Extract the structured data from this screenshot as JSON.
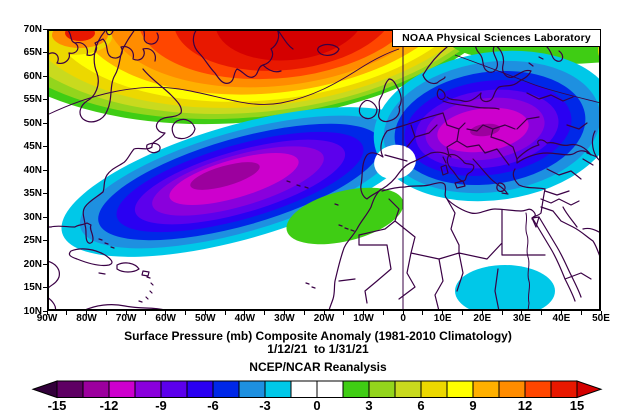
{
  "branding": {
    "label": "NOAA Physical Sciences Laboratory"
  },
  "captions": {
    "line1": "Surface Pressure (mb) Composite Anomaly (1981-2010 Climatology)",
    "line2": "1/12/21  to 1/31/21",
    "line3": "NCEP/NCAR Reanalysis"
  },
  "axes": {
    "lat_labels": [
      "70N",
      "65N",
      "60N",
      "55N",
      "50N",
      "45N",
      "40N",
      "35N",
      "30N",
      "25N",
      "20N",
      "15N",
      "10N"
    ],
    "lon_labels": [
      "90W",
      "80W",
      "70W",
      "60W",
      "50W",
      "40W",
      "30W",
      "20W",
      "10W",
      "0",
      "10E",
      "20E",
      "30E",
      "40E",
      "50E"
    ]
  },
  "chart_data": {
    "type": "heatmap",
    "title": "Surface Pressure (mb) Composite Anomaly (1981-2010 Climatology)",
    "variable": "Surface Pressure",
    "units": "mb",
    "statistic": "Composite Anomaly",
    "climatology": "1981-2010",
    "period": "1/12/21 to 1/31/21",
    "dataset": "NCEP/NCAR Reanalysis",
    "source_label": "NOAA Physical Sciences Laboratory",
    "lat_range": [
      "10N",
      "70N"
    ],
    "lon_range": [
      "90W",
      "50E"
    ],
    "grid": false,
    "colorbar": {
      "orientation": "horizontal",
      "min": -15,
      "max": 15,
      "step": 1.5,
      "tick_labels": [
        "-15",
        "-12",
        "-9",
        "-6",
        "-3",
        "0",
        "3",
        "6",
        "9",
        "12",
        "15"
      ],
      "segment_colors": [
        "#5e0063",
        "#9c009e",
        "#cd00cd",
        "#8a00dc",
        "#5c00ec",
        "#2a00f2",
        "#0028e8",
        "#1e90e0",
        "#00c8e8",
        "#ffffff",
        "#ffffff",
        "#3fcd14",
        "#93d51c",
        "#c9da1e",
        "#ecd800",
        "#ffff00",
        "#ffb000",
        "#ff8c00",
        "#ff4600",
        "#e81800"
      ],
      "below_min_color": "#32003a",
      "above_max_color": "#d40000"
    },
    "features": [
      {
        "name": "North Atlantic negative anomaly center",
        "approx_location": "42N 45W",
        "min_value_mb": -13
      },
      {
        "name": "European negative anomaly center",
        "approx_location": "50N 15E",
        "min_value_mb": -13
      },
      {
        "name": "Greenland / Arctic positive anomaly ridge",
        "approx_location": "70N 25W",
        "max_value_mb": 15
      },
      {
        "name": "Northwest Africa positive patch",
        "approx_location": "30N 10W",
        "value_mb": 2
      },
      {
        "name": "Sudan / Chad negative patch",
        "approx_location": "13N 25E",
        "value_mb": -2
      },
      {
        "name": "Eastern Mediterranean negative edge",
        "approx_location": "32N 28E",
        "value_mb": -2
      }
    ],
    "coastline_color": "#3a0145"
  }
}
